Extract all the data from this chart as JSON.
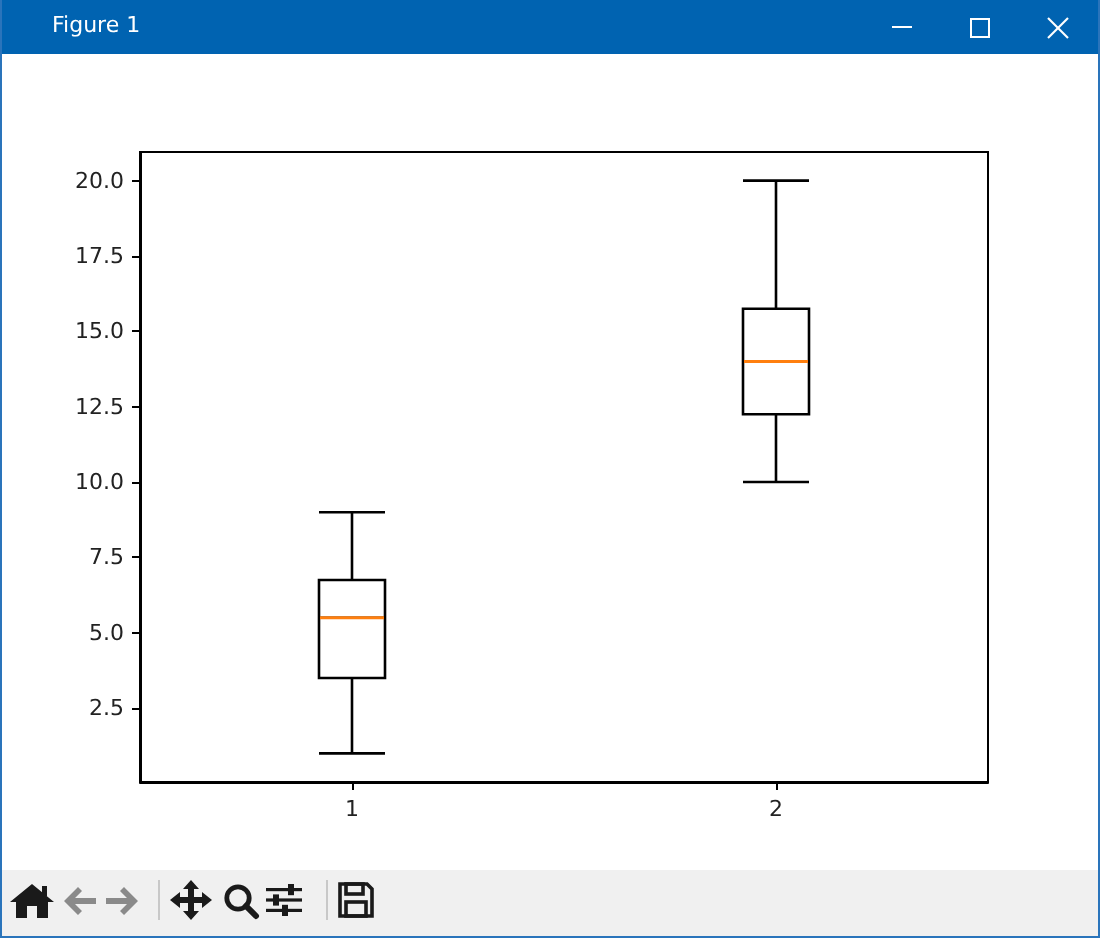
{
  "chart_data": {
    "type": "box",
    "annotations": [
      "Figure 1"
    ],
    "categories": [
      "1",
      "2"
    ],
    "series": [
      {
        "color": "#000000",
        "boxes": [
          {
            "low": 1,
            "q1": 3.5,
            "median": 5.5,
            "q3": 6.75,
            "high": 9
          },
          {
            "low": 10,
            "q1": 12.25,
            "median": 14,
            "q3": 15.75,
            "high": 20
          }
        ]
      }
    ],
    "ylim": [
      0.05,
      20.95
    ],
    "yticks": [
      2.5,
      {
        "value": 5,
        "label": "5.0"
      },
      7.5,
      {
        "value": 10,
        "label": "10.0"
      },
      12.5,
      {
        "value": 15,
        "label": "15.0"
      },
      17.5,
      {
        "value": 20,
        "label": "20.0"
      }
    ],
    "grid": false
  }
}
